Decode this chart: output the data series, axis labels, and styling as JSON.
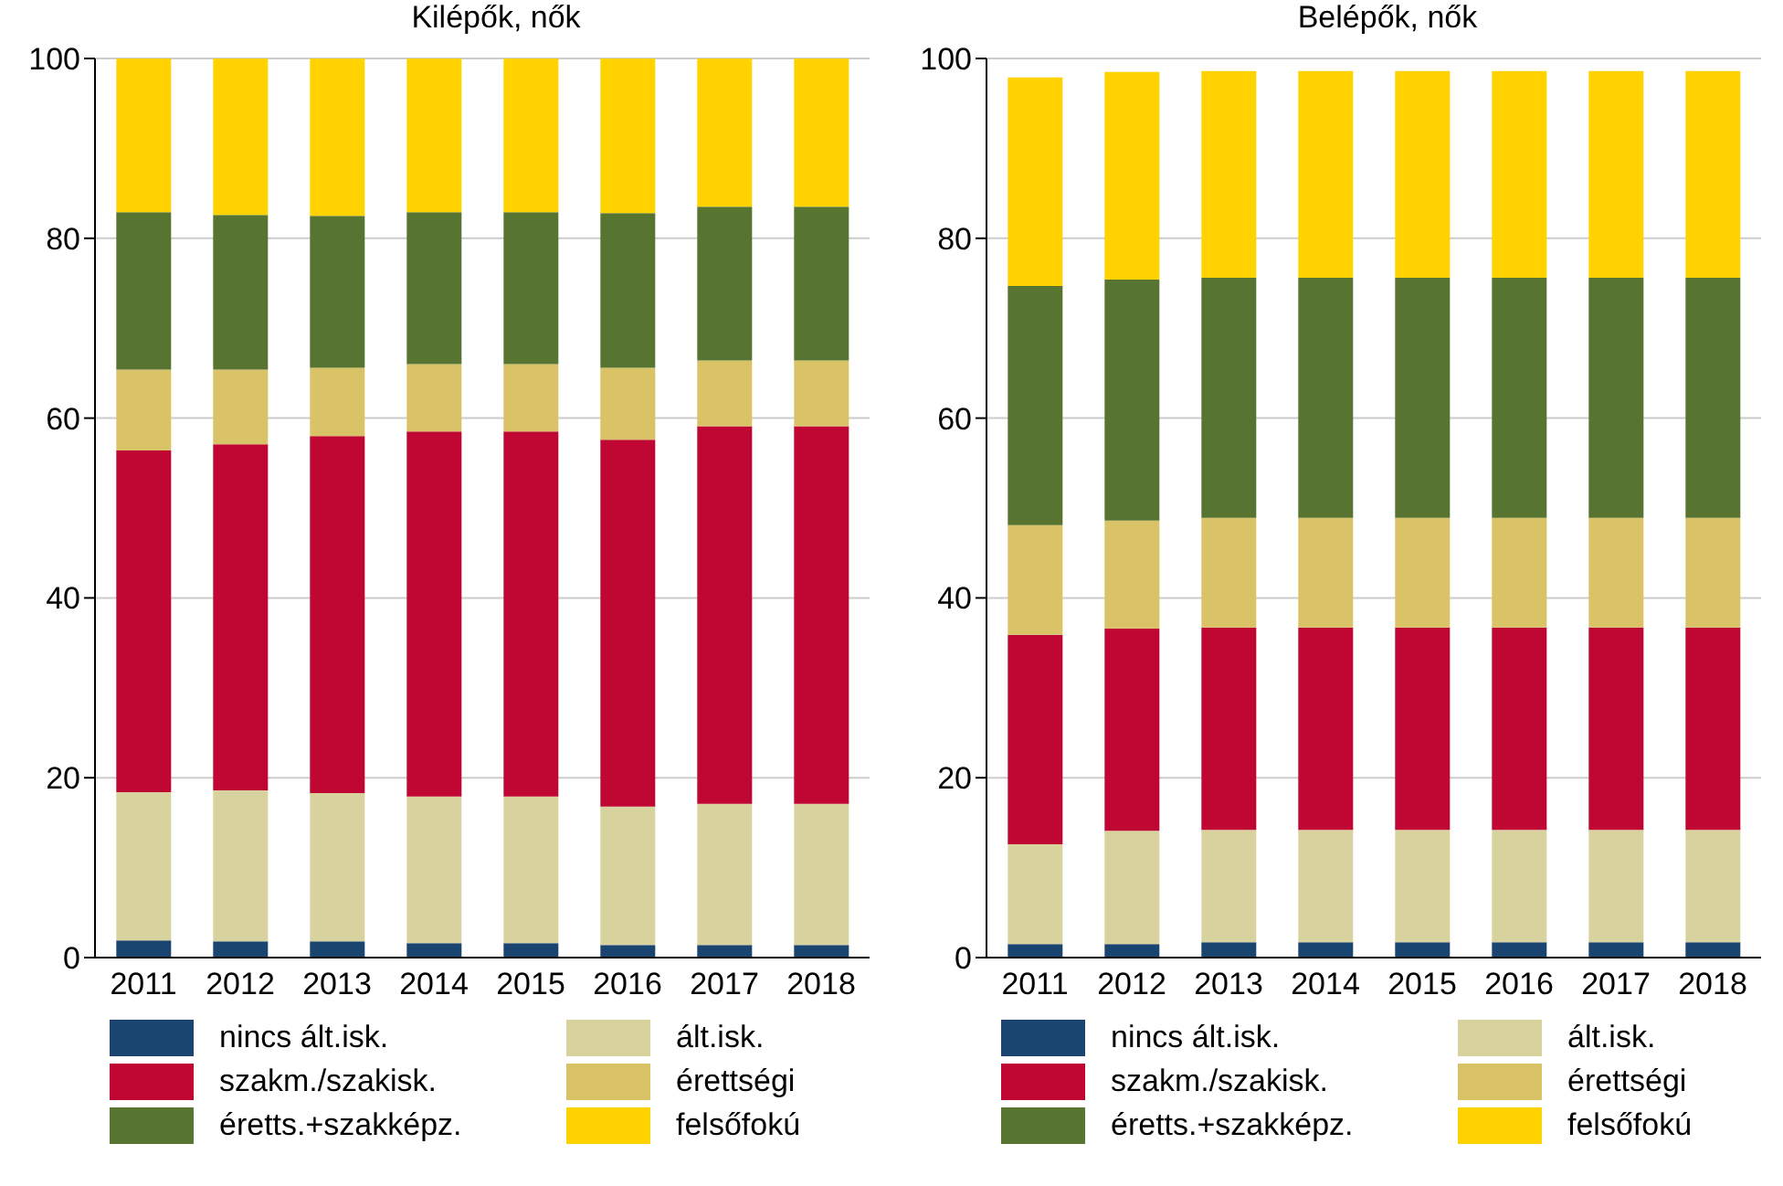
{
  "chart_data": [
    {
      "type": "bar",
      "title": "Kilépők, nők",
      "categories": [
        "2011",
        "2012",
        "2013",
        "2014",
        "2015",
        "2016",
        "2017",
        "2018"
      ],
      "stacked": true,
      "ylim": [
        0,
        100
      ],
      "yticks": [
        0,
        20,
        40,
        60,
        80,
        100
      ],
      "grid": "y",
      "legend": "bottom",
      "series": [
        {
          "name": "nincs ált.isk.",
          "color": "#1a4570",
          "values": [
            1.9,
            1.8,
            1.8,
            1.6,
            1.6,
            1.4,
            1.4,
            1.4
          ]
        },
        {
          "name": "ált.isk.",
          "color": "#d8d39e",
          "values": [
            16.5,
            16.8,
            16.5,
            16.3,
            16.3,
            15.4,
            15.7,
            15.7
          ]
        },
        {
          "name": "szakm./szakisk.",
          "color": "#c00633",
          "values": [
            38.0,
            38.5,
            39.7,
            40.6,
            40.6,
            40.8,
            42.0,
            42.0
          ]
        },
        {
          "name": "érettségi",
          "color": "#d9c366",
          "values": [
            9.0,
            8.3,
            7.6,
            7.5,
            7.5,
            8.0,
            7.3,
            7.3
          ]
        },
        {
          "name": "éretts.+szakképz.",
          "color": "#577530",
          "values": [
            17.5,
            17.2,
            16.9,
            16.9,
            16.9,
            17.2,
            17.1,
            17.1
          ]
        },
        {
          "name": "felsőfokú",
          "color": "#ffd200",
          "values": [
            17.1,
            17.4,
            17.5,
            17.1,
            17.1,
            17.2,
            16.5,
            16.5
          ]
        }
      ]
    },
    {
      "type": "bar",
      "title": "Belépők, nők",
      "categories": [
        "2011",
        "2012",
        "2013",
        "2014",
        "2015",
        "2016",
        "2017",
        "2018"
      ],
      "stacked": true,
      "ylim": [
        0,
        100
      ],
      "yticks": [
        0,
        20,
        40,
        60,
        80,
        100
      ],
      "grid": "y",
      "legend": "bottom",
      "series": [
        {
          "name": "nincs ált.isk.",
          "color": "#1a4570",
          "values": [
            1.5,
            1.5,
            1.7,
            1.7,
            1.7,
            1.7,
            1.7,
            1.7
          ]
        },
        {
          "name": "ált.isk.",
          "color": "#d8d39e",
          "values": [
            11.1,
            12.6,
            12.5,
            12.5,
            12.5,
            12.5,
            12.5,
            12.5
          ]
        },
        {
          "name": "szakm./szakisk.",
          "color": "#c00633",
          "values": [
            23.3,
            22.5,
            22.5,
            22.5,
            22.5,
            22.5,
            22.5,
            22.5
          ]
        },
        {
          "name": "érettségi",
          "color": "#d9c366",
          "values": [
            12.2,
            12.0,
            12.2,
            12.2,
            12.2,
            12.2,
            12.2,
            12.2
          ]
        },
        {
          "name": "éretts.+szakképz.",
          "color": "#577530",
          "values": [
            26.6,
            26.8,
            26.7,
            26.7,
            26.7,
            26.7,
            26.7,
            26.7
          ]
        },
        {
          "name": "felsőfokú",
          "color": "#ffd200",
          "values": [
            23.2,
            23.1,
            23.0,
            23.0,
            23.0,
            23.0,
            23.0,
            23.0
          ]
        }
      ]
    }
  ]
}
